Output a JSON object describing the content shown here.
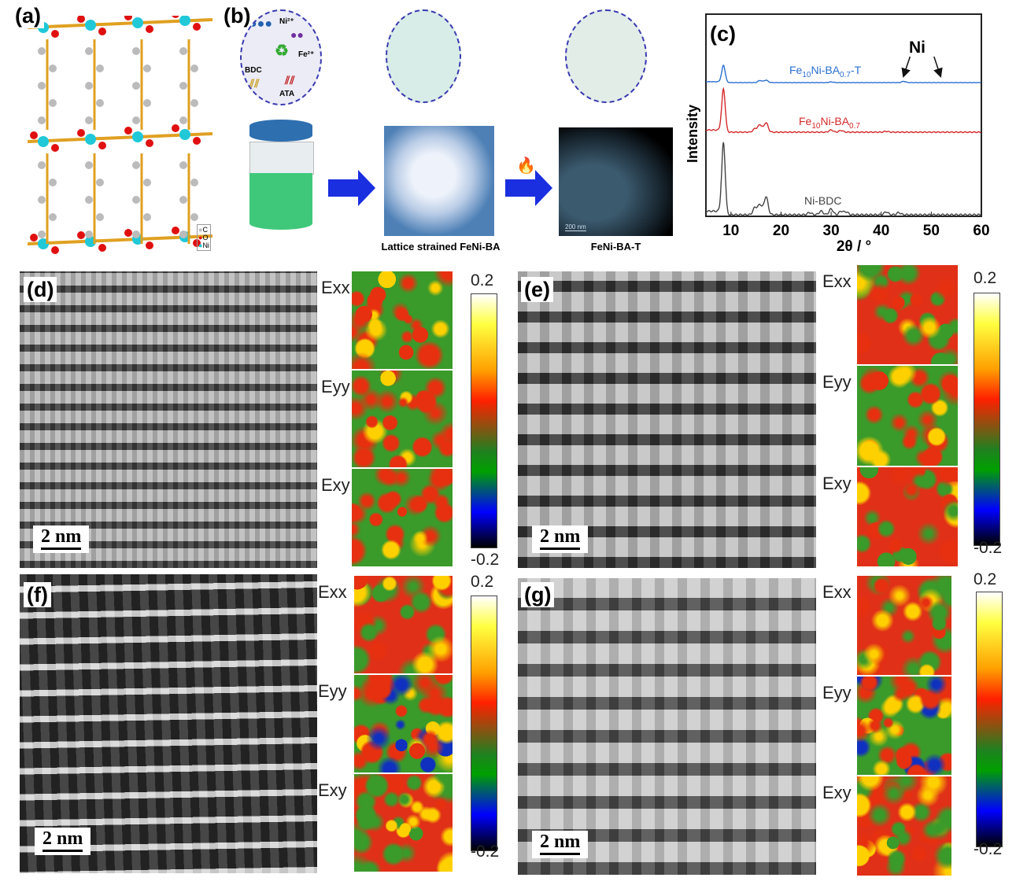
{
  "panels": {
    "a": {
      "label": "(a)",
      "legend": [
        "C",
        "O",
        "Ni"
      ],
      "colors": {
        "C": "#bbbbbb",
        "O": "#e01010",
        "Ni": "#20c8d8",
        "bond": "#e0a020"
      }
    },
    "b": {
      "label": "(b)",
      "precursors": {
        "ni": "Ni²⁺",
        "fe": "Fe²⁺",
        "bdc": "BDC",
        "ata": "ATA"
      },
      "caption_mid": "Lattice strained FeNi-BA",
      "caption_right": "FeNi-BA-T",
      "scale": "200 nm",
      "flame_icon": "🔥"
    },
    "d": {
      "label": "(d)",
      "scale": "2 nm",
      "maps": [
        "Exx",
        "Eyy",
        "Exy"
      ],
      "cmax": "0.2",
      "cmin": "-0.2"
    },
    "e": {
      "label": "(e)",
      "scale": "2 nm",
      "maps": [
        "Exx",
        "Eyy",
        "Exy"
      ],
      "cmax": "0.2",
      "cmin": "-0.2"
    },
    "f": {
      "label": "(f)",
      "scale": "2 nm",
      "maps": [
        "Exx",
        "Eyy",
        "Exy"
      ],
      "cmax": "0.2",
      "cmin": "-0.2"
    },
    "g": {
      "label": "(g)",
      "scale": "2 nm",
      "maps": [
        "Exx",
        "Eyy",
        "Exy"
      ],
      "cmax": "0.2",
      "cmin": "-0.2"
    }
  },
  "chart_data": {
    "type": "line",
    "panel_label": "(c)",
    "xlabel": "2θ / °",
    "ylabel": "Intensity",
    "xlim": [
      5,
      60
    ],
    "xticks": [
      "10",
      "20",
      "30",
      "40",
      "50",
      "60"
    ],
    "annotation": "Ni",
    "annotation_x": [
      44.5,
      51.8
    ],
    "series": [
      {
        "name": "Fe10Ni-BA0.7-T",
        "label_main": "Fe",
        "sub1": "10",
        "label_mid": "Ni-BA",
        "sub2": "0.7",
        "label_end": "-T",
        "color": "#2a6fd0",
        "peaks": [
          [
            8.5,
            1.0
          ],
          [
            15.8,
            0.12
          ],
          [
            17.0,
            0.14
          ],
          [
            30,
            0.04
          ],
          [
            44.5,
            0.07
          ]
        ]
      },
      {
        "name": "Fe10Ni-BA0.7",
        "label_main": "Fe",
        "sub1": "10",
        "label_mid": "Ni-BA",
        "sub2": "0.7",
        "label_end": "",
        "color": "#d42a2a",
        "peaks": [
          [
            8.5,
            1.0
          ],
          [
            14.8,
            0.08
          ],
          [
            15.8,
            0.17
          ],
          [
            17.0,
            0.22
          ],
          [
            30,
            0.05
          ],
          [
            32,
            0.04
          ],
          [
            41,
            0.02
          ]
        ]
      },
      {
        "name": "Ni-BDC",
        "label_main": "Ni-BDC",
        "sub1": "",
        "label_mid": "",
        "sub2": "",
        "label_end": "",
        "color": "#444444",
        "peaks": [
          [
            8.5,
            1.0
          ],
          [
            14.8,
            0.1
          ],
          [
            15.8,
            0.14
          ],
          [
            17.0,
            0.25
          ],
          [
            25.7,
            0.03
          ],
          [
            28,
            0.05
          ],
          [
            30,
            0.08
          ],
          [
            32,
            0.05
          ],
          [
            33,
            0.04
          ],
          [
            41,
            0.04
          ],
          [
            43.5,
            0.03
          ]
        ]
      }
    ]
  }
}
